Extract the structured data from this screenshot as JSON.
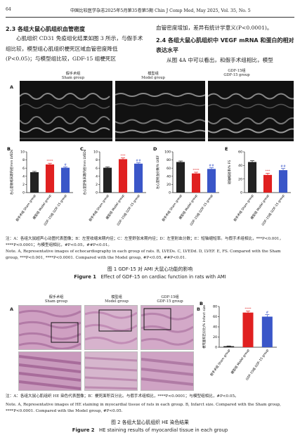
{
  "header": {
    "page": "64",
    "journal": "中国比较医学杂志2025年5月第35卷第5期   Chin J Comp Med, May 2025, Vol. 35, No. 5"
  },
  "left_col": {
    "heading": "2.3  各组大鼠心肌组织血管密度",
    "text": "心肌组织 CD31 免疫组化结果如图 3 所示，与假手术组比较，模型组心肌组织梗死区域血管密度降低(P<0.05)；与模型组比较，GDF-15 组梗死区"
  },
  "right_col": {
    "text1": "血管密度增加，差异有统计学意义(P<0.0001)。",
    "heading": "2.4  各组大鼠心肌组织中 VEGF mRNA 和蛋白的相对表达水平",
    "text2": "从图 4A 中可以看出，和假手术组相比，模型"
  },
  "fig1": {
    "panel_a": "A",
    "groups": [
      {
        "cn": "假手术组",
        "en": "Sham group"
      },
      {
        "cn": "模型组",
        "en": "Model group"
      },
      {
        "cn": "GDF-15组",
        "en": "GDF-15 group"
      }
    ],
    "note": "注：A：各组大鼠超声心动图代表图像；B：左室收缩末期内径；C：左室舒张末期内径；D：左室射血分数；E：短轴缩短率。与假手术组相比，***P<0.001，****P<0.0001；与模型组相比，#P<0.05，##P<0.01。",
    "note_en": "Note. A, Representative images of echocardiography in each group of rats. B, LVEDs. C, LVEDd. D, LVEF. E, FS. Compared with the Sham group, ***P<0.001, ****P<0.0001. Compared with the Model group, #P<0.05, ##P<0.01.",
    "caption_cn": "图 1   GDF-15 对 AMI 大鼠心功能的影响",
    "caption_en_label": "Figure 1",
    "caption_en": "Effect of GDF-15 on cardiac function in rats with AMI"
  },
  "fig2": {
    "panel_a": "A",
    "panel_b": "B",
    "note": "注：A：各组大鼠心肌组织 HE 染色代表图像；B：梗死面积百分比。与假手术组相比，****P<0.0001；与模型组相比，#P<0.05。",
    "note_en": "Note. A, Representative images of HE staining in myocardial tissue of rats in each group. B, Infarct size. Compared with the Sham group, ****P<0.0001. Compared with the Model group, #P<0.05.",
    "caption_cn": "图 2   各组大鼠心肌组织 HE 染色结果",
    "caption_en_label": "Figure 2",
    "caption_en": "HE staining results of myocardial tissue in each group"
  },
  "chart_data": [
    {
      "panel": "B",
      "type": "bar",
      "ylabel": "左心室收缩末期内径/mm LVEDs",
      "categories": [
        "假手术组 Sham group",
        "模型组 Model group",
        "GDF-15组 GDF-15 group"
      ],
      "values": [
        5.0,
        6.9,
        6.1
      ],
      "errors": [
        0.2,
        0.3,
        0.2
      ],
      "ylim": [
        0,
        10
      ],
      "yticks": [
        "0",
        "2",
        "4",
        "6",
        "8",
        "10"
      ],
      "colors": [
        "#222222",
        "#e02020",
        "#3a56c8"
      ],
      "sig": [
        "",
        "****",
        "#"
      ]
    },
    {
      "panel": "C",
      "type": "bar",
      "ylabel": "左心室舒张末期内径/mm LVEDd",
      "categories": [
        "假手术组 Sham group",
        "模型组 Model group",
        "GDF-15组 GDF-15 group"
      ],
      "values": [
        6.1,
        8.2,
        7.1
      ],
      "errors": [
        0.2,
        0.3,
        0.2
      ],
      "ylim": [
        0,
        10
      ],
      "yticks": [
        "0",
        "2",
        "4",
        "6",
        "8",
        "10"
      ],
      "colors": [
        "#222222",
        "#e02020",
        "#3a56c8"
      ],
      "sig": [
        "",
        "***",
        "##"
      ]
    },
    {
      "panel": "D",
      "type": "bar",
      "ylabel": "左心室射血分数/% LVEF",
      "categories": [
        "假手术组 Sham group",
        "模型组 Model group",
        "GDF-15组 GDF-15 group"
      ],
      "values": [
        75,
        47,
        58
      ],
      "errors": [
        2.5,
        3,
        3
      ],
      "ylim": [
        0,
        100
      ],
      "yticks": [
        "0",
        "20",
        "40",
        "60",
        "80",
        "100"
      ],
      "colors": [
        "#222222",
        "#e02020",
        "#3a56c8"
      ],
      "sig": [
        "",
        "****",
        "##"
      ]
    },
    {
      "panel": "E",
      "type": "bar",
      "ylabel": "短轴缩短率/% FS",
      "categories": [
        "假手术组 Sham group",
        "模型组 Model group",
        "GDF-15组 GDF-15 group"
      ],
      "values": [
        45,
        26,
        33
      ],
      "errors": [
        2,
        2.5,
        2.5
      ],
      "ylim": [
        0,
        60
      ],
      "yticks": [
        "0",
        "20",
        "40",
        "60"
      ],
      "colors": [
        "#222222",
        "#e02020",
        "#3a56c8"
      ],
      "sig": [
        "",
        "***",
        "##"
      ]
    },
    {
      "panel": "B2",
      "type": "bar",
      "ylabel": "梗死面积百分比/% Infarct size",
      "categories": [
        "假手术组 Sham group",
        "模型组 Model group",
        "GDF-15组 GDF-15 group"
      ],
      "values": [
        2,
        68,
        60
      ],
      "errors": [
        0.5,
        3,
        4
      ],
      "ylim": [
        0,
        80
      ],
      "yticks": [
        "0",
        "20",
        "40",
        "60",
        "80"
      ],
      "colors": [
        "#222222",
        "#e02020",
        "#3a56c8"
      ],
      "sig": [
        "",
        "****",
        "#"
      ]
    }
  ]
}
